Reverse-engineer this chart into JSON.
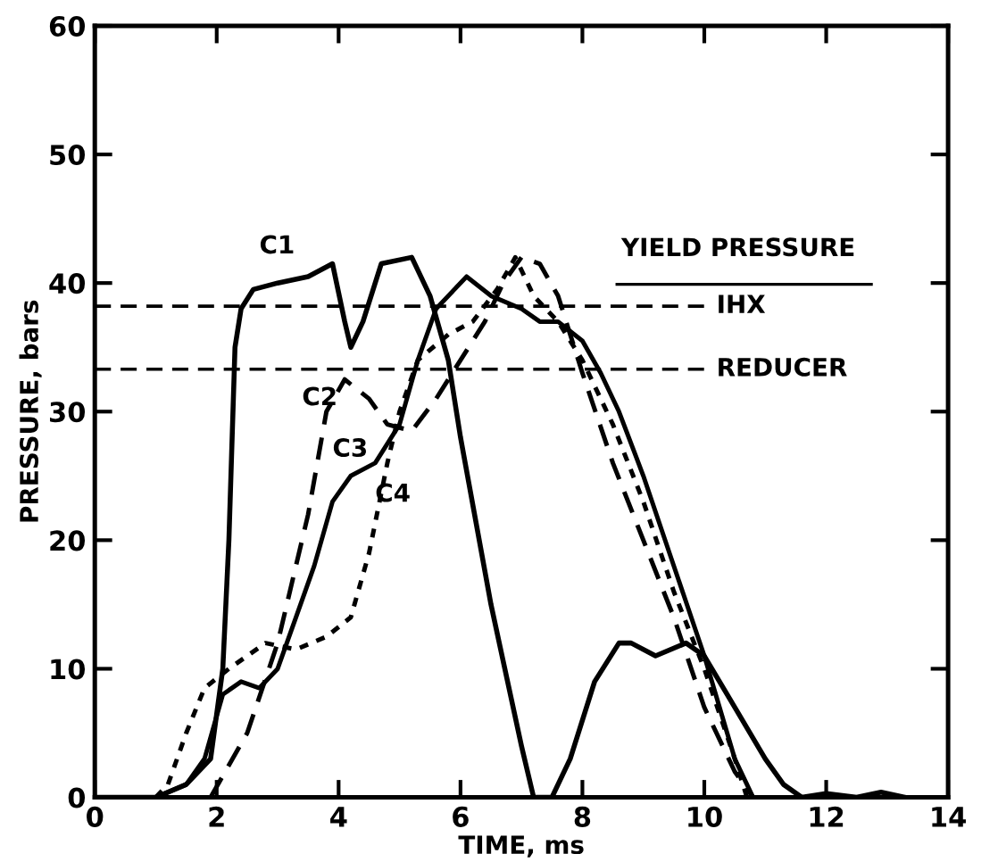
{
  "chart_data": {
    "type": "line",
    "xlabel": "TIME, ms",
    "ylabel": "PRESSURE, bars",
    "xlim": [
      0,
      14
    ],
    "ylim": [
      0,
      60
    ],
    "xticks": [
      0,
      2,
      4,
      6,
      8,
      10,
      12,
      14
    ],
    "yticks": [
      0,
      10,
      20,
      30,
      40,
      50,
      60
    ],
    "grid": false,
    "legend": false,
    "annotations": [
      "YIELD PRESSURE"
    ],
    "ref_lines": [
      {
        "axis": "y",
        "value": 38.2,
        "label": "IHX",
        "color": "#000000",
        "line_style": "dashed"
      },
      {
        "axis": "y",
        "value": 33.3,
        "label": "REDUCER",
        "color": "#000000",
        "line_style": "dashed"
      }
    ],
    "series": [
      {
        "name": "C1",
        "color": "#000000",
        "line_style": "solid",
        "x": [
          0,
          0.5,
          1,
          1.5,
          1.9,
          2.1,
          2.2,
          2.3,
          2.4,
          2.6,
          3,
          3.5,
          3.9,
          4.1,
          4.2,
          4.4,
          4.7,
          5.2,
          5.5,
          5.8,
          6,
          6.5,
          7,
          7.2,
          7.5,
          7.8,
          8.2,
          8.6,
          8.8,
          9.2,
          9.7,
          10,
          10.5,
          11,
          11.3,
          11.6,
          12,
          12.5,
          12.9,
          13.3
        ],
        "values": [
          0,
          0,
          0,
          1,
          3,
          10,
          20,
          35,
          38,
          39.5,
          40,
          40.5,
          41.5,
          37,
          35,
          37,
          41.5,
          42,
          39,
          34,
          28,
          15,
          4,
          0,
          0,
          3,
          9,
          12,
          12,
          11,
          12,
          11,
          7,
          3,
          1,
          0,
          0.3,
          0,
          0.4,
          0
        ]
      },
      {
        "name": "C2",
        "color": "#000000",
        "line_style": "dashed",
        "x": [
          1.9,
          2.5,
          3,
          3.5,
          3.8,
          4.1,
          4.5,
          4.8,
          5.2,
          5.6,
          6,
          6.4,
          6.7,
          7,
          7.3,
          7.6,
          8,
          8.5,
          9,
          9.5,
          10,
          10.5,
          10.8
        ],
        "values": [
          0,
          5,
          12,
          22,
          30,
          32.5,
          31,
          29,
          28.5,
          31,
          34,
          37,
          40,
          42,
          41.5,
          39,
          33,
          26,
          20,
          14,
          7,
          2,
          0
        ]
      },
      {
        "name": "C3",
        "color": "#000000",
        "line_style": "solid",
        "x": [
          1,
          1.5,
          1.8,
          2.1,
          2.4,
          2.7,
          3,
          3.3,
          3.6,
          3.9,
          4.2,
          4.6,
          5,
          5.3,
          5.6,
          6.1,
          6.5,
          7,
          7.3,
          7.6,
          8,
          8.3,
          8.6,
          9,
          9.5,
          10,
          10.5,
          10.8
        ],
        "values": [
          0,
          1,
          3,
          8,
          9,
          8.5,
          10,
          14,
          18,
          23,
          25,
          26,
          29,
          34,
          38,
          40.5,
          39,
          38,
          37,
          37,
          35.5,
          33,
          30,
          25,
          18,
          11,
          3,
          0
        ]
      },
      {
        "name": "C4",
        "color": "#000000",
        "line_style": "dotted",
        "x": [
          1,
          1.2,
          1.5,
          1.8,
          2.2,
          2.8,
          3.3,
          3.8,
          4.2,
          4.5,
          4.8,
          5,
          5.3,
          5.8,
          6.2,
          6.6,
          6.9,
          7.2,
          7.6,
          8,
          8.5,
          9,
          9.5,
          10,
          10.5,
          10.7
        ],
        "values": [
          0,
          1,
          5,
          8.5,
          10,
          12,
          11.5,
          12.5,
          14,
          19,
          26,
          30,
          34,
          36,
          37,
          39.5,
          42,
          39,
          37,
          34,
          29,
          23,
          16,
          10,
          3,
          0
        ]
      }
    ]
  }
}
